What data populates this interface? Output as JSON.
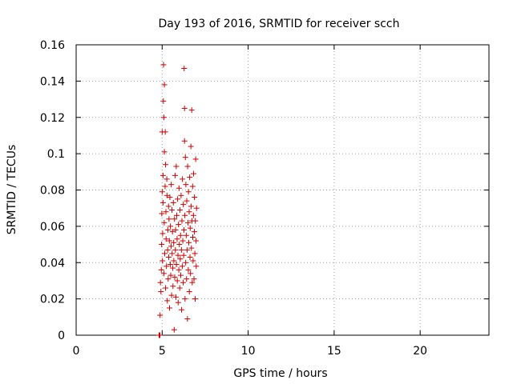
{
  "chart_data": {
    "type": "scatter",
    "title": "Day 193 of 2016, SRMTID for receiver scch",
    "xlabel": "GPS time / hours",
    "ylabel": "SRMTID / TECUs",
    "xlim": [
      0,
      24
    ],
    "ylim": [
      0,
      0.16
    ],
    "xticks": [
      0,
      5,
      10,
      15,
      20
    ],
    "yticks": [
      0,
      0.02,
      0.04,
      0.06,
      0.08,
      0.1,
      0.12,
      0.14,
      0.16
    ],
    "xtick_labels": [
      "0",
      "5",
      "10",
      "15",
      "20"
    ],
    "ytick_labels": [
      "0",
      "0.02",
      "0.04",
      "0.06",
      "0.08",
      "0.1",
      "0.12",
      "0.14",
      "0.16"
    ],
    "grid": true,
    "marker": "+",
    "color": "#cc0000",
    "series": [
      {
        "name": "SRMTID",
        "points": [
          [
            4.82,
            0.0
          ],
          [
            4.85,
            0.0
          ],
          [
            4.87,
            0.0
          ],
          [
            4.88,
            0.011
          ],
          [
            4.9,
            0.029
          ],
          [
            4.93,
            0.024
          ],
          [
            4.95,
            0.036
          ],
          [
            4.97,
            0.05
          ],
          [
            4.98,
            0.067
          ],
          [
            5.0,
            0.079
          ],
          [
            5.0,
            0.112
          ],
          [
            5.02,
            0.041
          ],
          [
            5.03,
            0.056
          ],
          [
            5.05,
            0.073
          ],
          [
            5.05,
            0.088
          ],
          [
            5.07,
            0.129
          ],
          [
            5.08,
            0.149
          ],
          [
            5.1,
            0.034
          ],
          [
            5.1,
            0.12
          ],
          [
            5.12,
            0.062
          ],
          [
            5.13,
            0.101
          ],
          [
            5.13,
            0.138
          ],
          [
            5.15,
            0.045
          ],
          [
            5.17,
            0.082
          ],
          [
            5.18,
            0.112
          ],
          [
            5.2,
            0.026
          ],
          [
            5.2,
            0.094
          ],
          [
            5.22,
            0.068
          ],
          [
            5.23,
            0.053
          ],
          [
            5.25,
            0.038
          ],
          [
            5.27,
            0.086
          ],
          [
            5.28,
            0.077
          ],
          [
            5.3,
            0.019
          ],
          [
            5.32,
            0.047
          ],
          [
            5.33,
            0.058
          ],
          [
            5.35,
            0.031
          ],
          [
            5.37,
            0.071
          ],
          [
            5.38,
            0.043
          ],
          [
            5.4,
            0.064
          ],
          [
            5.42,
            0.052
          ],
          [
            5.43,
            0.015
          ],
          [
            5.45,
            0.076
          ],
          [
            5.47,
            0.039
          ],
          [
            5.48,
            0.06
          ],
          [
            5.5,
            0.033
          ],
          [
            5.52,
            0.049
          ],
          [
            5.53,
            0.083
          ],
          [
            5.55,
            0.022
          ],
          [
            5.57,
            0.069
          ],
          [
            5.58,
            0.045
          ],
          [
            5.6,
            0.057
          ],
          [
            5.62,
            0.037
          ],
          [
            5.63,
            0.027
          ],
          [
            5.65,
            0.073
          ],
          [
            5.67,
            0.051
          ],
          [
            5.68,
            0.041
          ],
          [
            5.7,
            0.003
          ],
          [
            5.72,
            0.064
          ],
          [
            5.73,
            0.032
          ],
          [
            5.75,
            0.088
          ],
          [
            5.77,
            0.047
          ],
          [
            5.78,
            0.058
          ],
          [
            5.8,
            0.021
          ],
          [
            5.82,
            0.093
          ],
          [
            5.83,
            0.039
          ],
          [
            5.85,
            0.066
          ],
          [
            5.87,
            0.053
          ],
          [
            5.88,
            0.03
          ],
          [
            5.9,
            0.075
          ],
          [
            5.92,
            0.044
          ],
          [
            5.93,
            0.018
          ],
          [
            5.95,
            0.061
          ],
          [
            5.97,
            0.036
          ],
          [
            5.98,
            0.081
          ],
          [
            6.0,
            0.05
          ],
          [
            6.02,
            0.026
          ],
          [
            6.03,
            0.069
          ],
          [
            6.05,
            0.042
          ],
          [
            6.07,
            0.055
          ],
          [
            6.08,
            0.033
          ],
          [
            6.1,
            0.077
          ],
          [
            6.12,
            0.047
          ],
          [
            6.13,
            0.014
          ],
          [
            6.15,
            0.063
          ],
          [
            6.17,
            0.038
          ],
          [
            6.18,
            0.086
          ],
          [
            6.2,
            0.052
          ],
          [
            6.22,
            0.029
          ],
          [
            6.23,
            0.072
          ],
          [
            6.25,
            0.044
          ],
          [
            6.27,
            0.058
          ],
          [
            6.28,
            0.147
          ],
          [
            6.3,
            0.125
          ],
          [
            6.3,
            0.107
          ],
          [
            6.32,
            0.066
          ],
          [
            6.33,
            0.02
          ],
          [
            6.35,
            0.098
          ],
          [
            6.37,
            0.04
          ],
          [
            6.38,
            0.083
          ],
          [
            6.4,
            0.055
          ],
          [
            6.42,
            0.031
          ],
          [
            6.43,
            0.074
          ],
          [
            6.45,
            0.047
          ],
          [
            6.47,
            0.009
          ],
          [
            6.48,
            0.093
          ],
          [
            6.5,
            0.062
          ],
          [
            6.52,
            0.036
          ],
          [
            6.53,
            0.079
          ],
          [
            6.55,
            0.051
          ],
          [
            6.57,
            0.068
          ],
          [
            6.58,
            0.024
          ],
          [
            6.6,
            0.087
          ],
          [
            6.62,
            0.043
          ],
          [
            6.63,
            0.059
          ],
          [
            6.65,
            0.034
          ],
          [
            6.67,
            0.104
          ],
          [
            6.68,
            0.071
          ],
          [
            6.7,
            0.048
          ],
          [
            6.72,
            0.124
          ],
          [
            6.73,
            0.063
          ],
          [
            6.75,
            0.029
          ],
          [
            6.77,
            0.082
          ],
          [
            6.78,
            0.054
          ],
          [
            6.8,
            0.041
          ],
          [
            6.82,
            0.066
          ],
          [
            6.83,
            0.089
          ],
          [
            6.85,
            0.031
          ],
          [
            6.87,
            0.057
          ],
          [
            6.88,
            0.076
          ],
          [
            6.9,
            0.045
          ],
          [
            6.92,
            0.02
          ],
          [
            6.93,
            0.063
          ],
          [
            6.95,
            0.097
          ],
          [
            6.97,
            0.052
          ],
          [
            6.98,
            0.038
          ],
          [
            7.0,
            0.07
          ]
        ]
      }
    ]
  }
}
